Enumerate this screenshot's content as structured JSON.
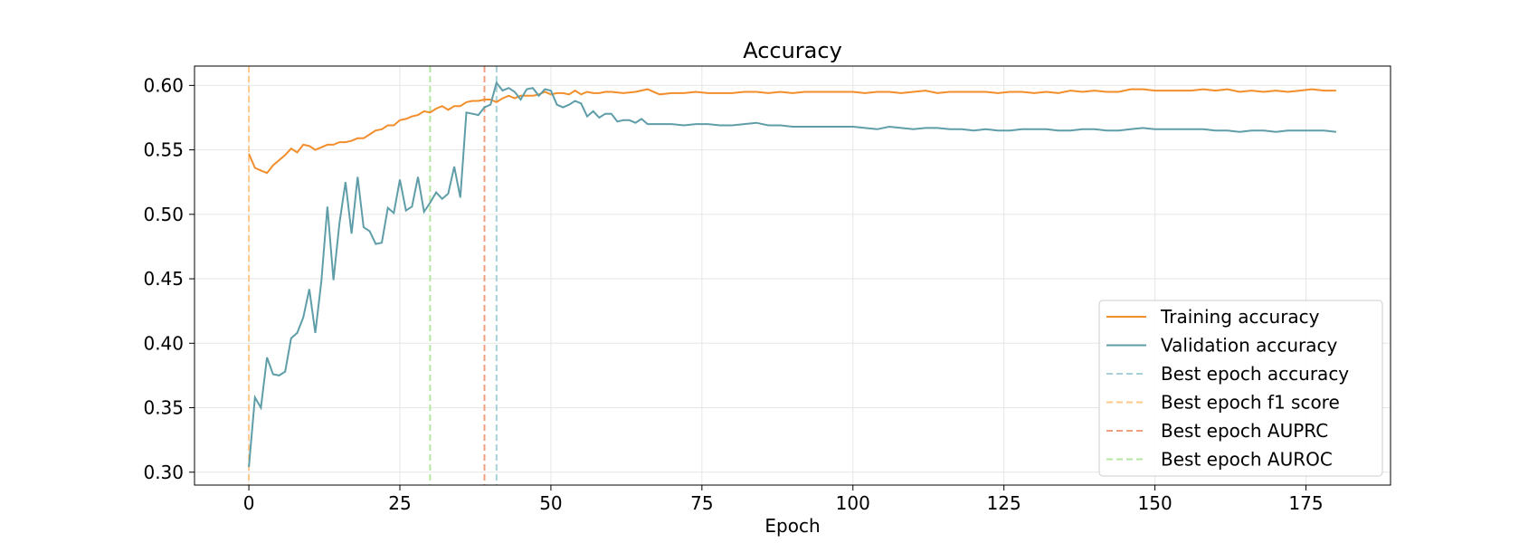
{
  "chart_data": {
    "type": "line",
    "title": "Accuracy",
    "xlabel": "Epoch",
    "ylabel": "",
    "xlim": [
      -9,
      189
    ],
    "ylim": [
      0.29,
      0.615
    ],
    "xticks": [
      0,
      25,
      50,
      75,
      100,
      125,
      150,
      175
    ],
    "yticks": [
      0.3,
      0.35,
      0.4,
      0.45,
      0.5,
      0.55,
      0.6
    ],
    "grid": true,
    "legend_position": "lower-right",
    "series": [
      {
        "name": "Training accuracy",
        "color": "#f28e2b",
        "points": [
          [
            0,
            0.547
          ],
          [
            1,
            0.536
          ],
          [
            2,
            0.534
          ],
          [
            3,
            0.532
          ],
          [
            4,
            0.538
          ],
          [
            5,
            0.542
          ],
          [
            6,
            0.546
          ],
          [
            7,
            0.551
          ],
          [
            8,
            0.548
          ],
          [
            9,
            0.554
          ],
          [
            10,
            0.553
          ],
          [
            11,
            0.55
          ],
          [
            12,
            0.552
          ],
          [
            13,
            0.554
          ],
          [
            14,
            0.554
          ],
          [
            15,
            0.556
          ],
          [
            16,
            0.556
          ],
          [
            17,
            0.557
          ],
          [
            18,
            0.559
          ],
          [
            19,
            0.559
          ],
          [
            20,
            0.562
          ],
          [
            21,
            0.565
          ],
          [
            22,
            0.566
          ],
          [
            23,
            0.569
          ],
          [
            24,
            0.569
          ],
          [
            25,
            0.573
          ],
          [
            26,
            0.574
          ],
          [
            27,
            0.576
          ],
          [
            28,
            0.577
          ],
          [
            29,
            0.58
          ],
          [
            30,
            0.579
          ],
          [
            31,
            0.582
          ],
          [
            32,
            0.584
          ],
          [
            33,
            0.581
          ],
          [
            34,
            0.584
          ],
          [
            35,
            0.584
          ],
          [
            36,
            0.587
          ],
          [
            37,
            0.588
          ],
          [
            38,
            0.588
          ],
          [
            39,
            0.589
          ],
          [
            40,
            0.589
          ],
          [
            41,
            0.587
          ],
          [
            42,
            0.59
          ],
          [
            43,
            0.592
          ],
          [
            44,
            0.59
          ],
          [
            45,
            0.592
          ],
          [
            46,
            0.592
          ],
          [
            47,
            0.592
          ],
          [
            48,
            0.593
          ],
          [
            49,
            0.595
          ],
          [
            50,
            0.593
          ],
          [
            51,
            0.594
          ],
          [
            52,
            0.594
          ],
          [
            53,
            0.593
          ],
          [
            54,
            0.596
          ],
          [
            55,
            0.593
          ],
          [
            56,
            0.595
          ],
          [
            57,
            0.594
          ],
          [
            58,
            0.594
          ],
          [
            59,
            0.595
          ],
          [
            60,
            0.595
          ],
          [
            62,
            0.594
          ],
          [
            64,
            0.595
          ],
          [
            66,
            0.597
          ],
          [
            68,
            0.593
          ],
          [
            70,
            0.594
          ],
          [
            72,
            0.594
          ],
          [
            74,
            0.595
          ],
          [
            76,
            0.594
          ],
          [
            78,
            0.594
          ],
          [
            80,
            0.594
          ],
          [
            82,
            0.595
          ],
          [
            84,
            0.595
          ],
          [
            86,
            0.594
          ],
          [
            88,
            0.595
          ],
          [
            90,
            0.594
          ],
          [
            92,
            0.595
          ],
          [
            94,
            0.595
          ],
          [
            96,
            0.595
          ],
          [
            98,
            0.595
          ],
          [
            100,
            0.595
          ],
          [
            102,
            0.594
          ],
          [
            104,
            0.595
          ],
          [
            106,
            0.595
          ],
          [
            108,
            0.594
          ],
          [
            110,
            0.595
          ],
          [
            112,
            0.596
          ],
          [
            114,
            0.594
          ],
          [
            116,
            0.595
          ],
          [
            118,
            0.595
          ],
          [
            120,
            0.595
          ],
          [
            122,
            0.595
          ],
          [
            124,
            0.594
          ],
          [
            126,
            0.595
          ],
          [
            128,
            0.595
          ],
          [
            130,
            0.594
          ],
          [
            132,
            0.595
          ],
          [
            134,
            0.594
          ],
          [
            136,
            0.596
          ],
          [
            138,
            0.595
          ],
          [
            140,
            0.596
          ],
          [
            142,
            0.595
          ],
          [
            144,
            0.595
          ],
          [
            146,
            0.597
          ],
          [
            148,
            0.597
          ],
          [
            150,
            0.596
          ],
          [
            152,
            0.596
          ],
          [
            154,
            0.596
          ],
          [
            156,
            0.596
          ],
          [
            158,
            0.597
          ],
          [
            160,
            0.596
          ],
          [
            162,
            0.597
          ],
          [
            164,
            0.595
          ],
          [
            166,
            0.596
          ],
          [
            168,
            0.595
          ],
          [
            170,
            0.596
          ],
          [
            172,
            0.595
          ],
          [
            174,
            0.596
          ],
          [
            176,
            0.597
          ],
          [
            178,
            0.596
          ],
          [
            180,
            0.596
          ]
        ]
      },
      {
        "name": "Validation accuracy",
        "color": "#5f9ea8",
        "points": [
          [
            0,
            0.304
          ],
          [
            1,
            0.358
          ],
          [
            2,
            0.35
          ],
          [
            3,
            0.389
          ],
          [
            4,
            0.376
          ],
          [
            5,
            0.375
          ],
          [
            6,
            0.378
          ],
          [
            7,
            0.404
          ],
          [
            8,
            0.408
          ],
          [
            9,
            0.42
          ],
          [
            10,
            0.442
          ],
          [
            11,
            0.408
          ],
          [
            12,
            0.448
          ],
          [
            13,
            0.506
          ],
          [
            14,
            0.449
          ],
          [
            15,
            0.493
          ],
          [
            16,
            0.525
          ],
          [
            17,
            0.485
          ],
          [
            18,
            0.529
          ],
          [
            19,
            0.49
          ],
          [
            20,
            0.487
          ],
          [
            21,
            0.477
          ],
          [
            22,
            0.478
          ],
          [
            23,
            0.505
          ],
          [
            24,
            0.501
          ],
          [
            25,
            0.527
          ],
          [
            26,
            0.503
          ],
          [
            27,
            0.506
          ],
          [
            28,
            0.529
          ],
          [
            29,
            0.502
          ],
          [
            30,
            0.509
          ],
          [
            31,
            0.517
          ],
          [
            32,
            0.512
          ],
          [
            33,
            0.516
          ],
          [
            34,
            0.537
          ],
          [
            35,
            0.513
          ],
          [
            36,
            0.579
          ],
          [
            37,
            0.578
          ],
          [
            38,
            0.577
          ],
          [
            39,
            0.583
          ],
          [
            40,
            0.585
          ],
          [
            41,
            0.602
          ],
          [
            42,
            0.596
          ],
          [
            43,
            0.598
          ],
          [
            44,
            0.595
          ],
          [
            45,
            0.589
          ],
          [
            46,
            0.597
          ],
          [
            47,
            0.598
          ],
          [
            48,
            0.592
          ],
          [
            49,
            0.597
          ],
          [
            50,
            0.596
          ],
          [
            51,
            0.585
          ],
          [
            52,
            0.583
          ],
          [
            53,
            0.585
          ],
          [
            54,
            0.588
          ],
          [
            55,
            0.586
          ],
          [
            56,
            0.576
          ],
          [
            57,
            0.58
          ],
          [
            58,
            0.575
          ],
          [
            59,
            0.578
          ],
          [
            60,
            0.578
          ],
          [
            61,
            0.572
          ],
          [
            62,
            0.573
          ],
          [
            63,
            0.573
          ],
          [
            64,
            0.571
          ],
          [
            65,
            0.574
          ],
          [
            66,
            0.57
          ],
          [
            68,
            0.57
          ],
          [
            70,
            0.57
          ],
          [
            72,
            0.569
          ],
          [
            74,
            0.57
          ],
          [
            76,
            0.57
          ],
          [
            78,
            0.569
          ],
          [
            80,
            0.569
          ],
          [
            82,
            0.57
          ],
          [
            84,
            0.571
          ],
          [
            86,
            0.569
          ],
          [
            88,
            0.569
          ],
          [
            90,
            0.568
          ],
          [
            92,
            0.568
          ],
          [
            94,
            0.568
          ],
          [
            96,
            0.568
          ],
          [
            98,
            0.568
          ],
          [
            100,
            0.568
          ],
          [
            102,
            0.567
          ],
          [
            104,
            0.566
          ],
          [
            106,
            0.568
          ],
          [
            108,
            0.567
          ],
          [
            110,
            0.566
          ],
          [
            112,
            0.567
          ],
          [
            114,
            0.567
          ],
          [
            116,
            0.566
          ],
          [
            118,
            0.566
          ],
          [
            120,
            0.565
          ],
          [
            122,
            0.566
          ],
          [
            124,
            0.565
          ],
          [
            126,
            0.565
          ],
          [
            128,
            0.566
          ],
          [
            130,
            0.566
          ],
          [
            132,
            0.566
          ],
          [
            134,
            0.565
          ],
          [
            136,
            0.565
          ],
          [
            138,
            0.566
          ],
          [
            140,
            0.566
          ],
          [
            142,
            0.565
          ],
          [
            144,
            0.565
          ],
          [
            146,
            0.566
          ],
          [
            148,
            0.567
          ],
          [
            150,
            0.566
          ],
          [
            152,
            0.566
          ],
          [
            154,
            0.566
          ],
          [
            156,
            0.566
          ],
          [
            158,
            0.566
          ],
          [
            160,
            0.565
          ],
          [
            162,
            0.565
          ],
          [
            164,
            0.564
          ],
          [
            166,
            0.565
          ],
          [
            168,
            0.565
          ],
          [
            170,
            0.564
          ],
          [
            172,
            0.565
          ],
          [
            174,
            0.565
          ],
          [
            176,
            0.565
          ],
          [
            178,
            0.565
          ],
          [
            180,
            0.564
          ]
        ]
      }
    ],
    "vlines": [
      {
        "name": "Best epoch accuracy",
        "x": 41,
        "color": "#a8d0d8"
      },
      {
        "name": "Best epoch f1 score",
        "x": 0,
        "color": "#ffc78a"
      },
      {
        "name": "Best epoch AUPRC",
        "x": 39,
        "color": "#f0a080"
      },
      {
        "name": "Best epoch AUROC",
        "x": 30,
        "color": "#b4e6a0"
      }
    ]
  }
}
